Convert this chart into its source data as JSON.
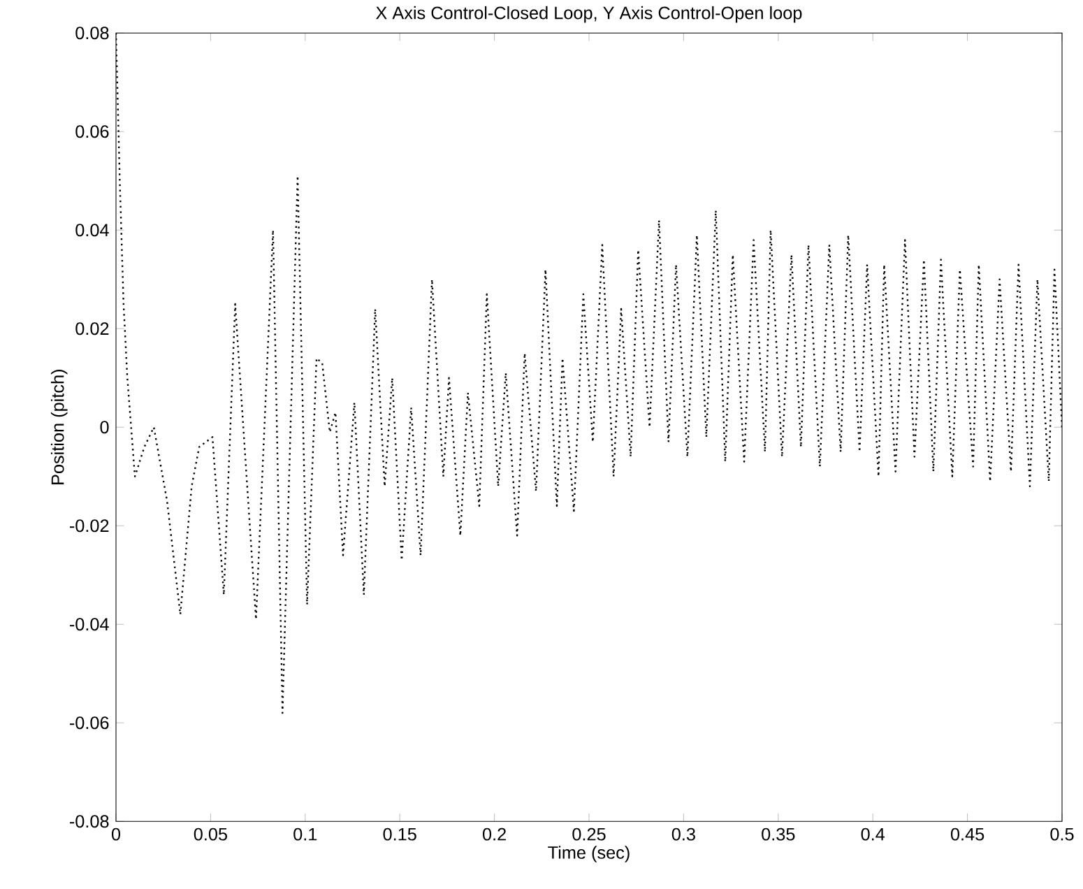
{
  "chart_data": {
    "type": "line",
    "title": "X Axis Control-Closed Loop, Y Axis Control-Open loop",
    "xlabel": "Time (sec)",
    "ylabel": "Position (pitch)",
    "xlim": [
      0,
      0.5
    ],
    "ylim": [
      -0.08,
      0.08
    ],
    "xticks": [
      0,
      0.05,
      0.1,
      0.15,
      0.2,
      0.25,
      0.3,
      0.35,
      0.4,
      0.45,
      0.5
    ],
    "yticks": [
      -0.08,
      -0.06,
      -0.04,
      -0.02,
      0,
      0.02,
      0.04,
      0.06,
      0.08
    ],
    "line_style": "dotted",
    "series": [
      {
        "color": "#000000",
        "x": [
          0,
          0.002,
          0.004,
          0.006,
          0.01,
          0.015,
          0.02,
          0.027,
          0.034,
          0.04,
          0.044,
          0.051,
          0.057,
          0.063,
          0.074,
          0.083,
          0.088,
          0.096,
          0.101,
          0.106,
          0.109,
          0.113,
          0.116,
          0.12,
          0.126,
          0.131,
          0.137,
          0.142,
          0.146,
          0.151,
          0.156,
          0.161,
          0.167,
          0.173,
          0.176,
          0.182,
          0.186,
          0.192,
          0.196,
          0.202,
          0.206,
          0.212,
          0.216,
          0.222,
          0.227,
          0.233,
          0.236,
          0.242,
          0.247,
          0.252,
          0.257,
          0.263,
          0.267,
          0.272,
          0.276,
          0.282,
          0.287,
          0.292,
          0.296,
          0.302,
          0.307,
          0.312,
          0.317,
          0.322,
          0.326,
          0.332,
          0.337,
          0.343,
          0.346,
          0.352,
          0.357,
          0.362,
          0.366,
          0.372,
          0.377,
          0.383,
          0.387,
          0.393,
          0.397,
          0.403,
          0.406,
          0.412,
          0.417,
          0.422,
          0.427,
          0.432,
          0.436,
          0.442,
          0.446,
          0.453,
          0.456,
          0.462,
          0.467,
          0.473,
          0.477,
          0.483,
          0.487,
          0.493,
          0.496,
          0.5
        ],
        "values": [
          0.08,
          0.05,
          0.025,
          0.01,
          -0.01,
          -0.004,
          0,
          -0.015,
          -0.038,
          -0.012,
          -0.004,
          -0.002,
          -0.034,
          0.025,
          -0.039,
          0.04,
          -0.058,
          0.051,
          -0.036,
          0.014,
          0.013,
          -0.001,
          0.003,
          -0.026,
          0.005,
          -0.034,
          0.024,
          -0.012,
          0.01,
          -0.027,
          0.004,
          -0.026,
          0.03,
          -0.01,
          0.01,
          -0.022,
          0.007,
          -0.016,
          0.027,
          -0.012,
          0.011,
          -0.022,
          0.015,
          -0.013,
          0.032,
          -0.016,
          0.014,
          -0.017,
          0.027,
          -0.003,
          0.037,
          -0.01,
          0.024,
          -0.006,
          0.036,
          0,
          0.042,
          -0.003,
          0.033,
          -0.006,
          0.039,
          -0.002,
          0.044,
          -0.007,
          0.035,
          -0.007,
          0.038,
          -0.005,
          0.04,
          -0.006,
          0.035,
          -0.004,
          0.037,
          -0.008,
          0.037,
          -0.005,
          0.039,
          -0.005,
          0.033,
          -0.01,
          0.033,
          -0.009,
          0.038,
          -0.006,
          0.034,
          -0.009,
          0.034,
          -0.01,
          0.032,
          -0.008,
          0.033,
          -0.011,
          0.03,
          -0.009,
          0.033,
          -0.012,
          0.03,
          -0.011,
          0.032,
          0
        ]
      }
    ]
  }
}
